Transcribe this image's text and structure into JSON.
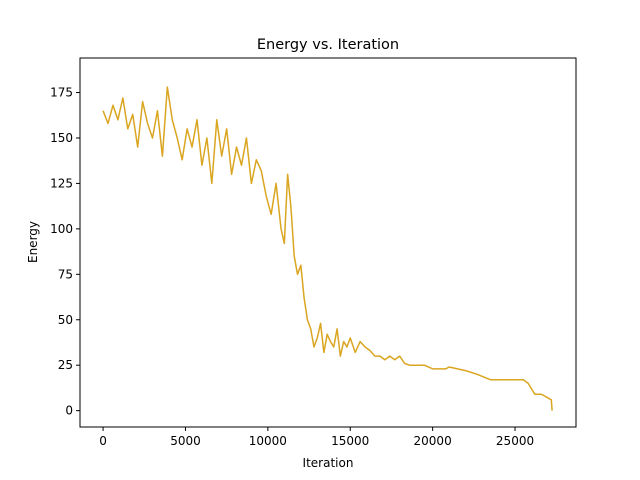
{
  "chart_data": {
    "type": "line",
    "title": "Energy vs. Iteration",
    "xlabel": "Iteration",
    "ylabel": "Energy",
    "xlim": [
      -1400,
      28700
    ],
    "ylim": [
      -9,
      194
    ],
    "xticks": [
      0,
      5000,
      10000,
      15000,
      20000,
      25000
    ],
    "yticks": [
      0,
      25,
      50,
      75,
      100,
      125,
      150,
      175
    ],
    "grid": false,
    "legend": "none",
    "series": [
      {
        "color": "#daa520",
        "x": [
          0,
          300,
          600,
          900,
          1200,
          1500,
          1800,
          2100,
          2400,
          2700,
          3000,
          3300,
          3600,
          3900,
          4200,
          4500,
          4800,
          5100,
          5400,
          5700,
          6000,
          6300,
          6600,
          6900,
          7200,
          7500,
          7800,
          8100,
          8400,
          8700,
          9000,
          9300,
          9600,
          9900,
          10200,
          10500,
          10800,
          11000,
          11200,
          11400,
          11600,
          11800,
          12000,
          12200,
          12400,
          12600,
          12800,
          13000,
          13200,
          13400,
          13600,
          13800,
          14000,
          14200,
          14400,
          14600,
          14800,
          15000,
          15300,
          15600,
          15900,
          16200,
          16500,
          16800,
          17100,
          17400,
          17700,
          18000,
          18300,
          18600,
          18900,
          19200,
          19500,
          20000,
          20500,
          20800,
          21000,
          22000,
          22700,
          23500,
          24500,
          25500,
          25800,
          26200,
          26600,
          27000,
          27200,
          27250
        ],
        "values": [
          165,
          158,
          168,
          160,
          172,
          155,
          163,
          145,
          170,
          158,
          150,
          165,
          140,
          178,
          160,
          150,
          138,
          155,
          145,
          160,
          135,
          150,
          125,
          160,
          140,
          155,
          130,
          145,
          135,
          150,
          125,
          138,
          132,
          118,
          108,
          125,
          100,
          92,
          130,
          112,
          85,
          75,
          80,
          62,
          50,
          45,
          35,
          40,
          48,
          32,
          42,
          38,
          35,
          45,
          30,
          38,
          35,
          40,
          32,
          38,
          35,
          33,
          30,
          30,
          28,
          30,
          28,
          30,
          26,
          25,
          25,
          25,
          25,
          23,
          23,
          23,
          24,
          22,
          20,
          17,
          17,
          17,
          15,
          9,
          9,
          7,
          6,
          0
        ]
      }
    ]
  }
}
